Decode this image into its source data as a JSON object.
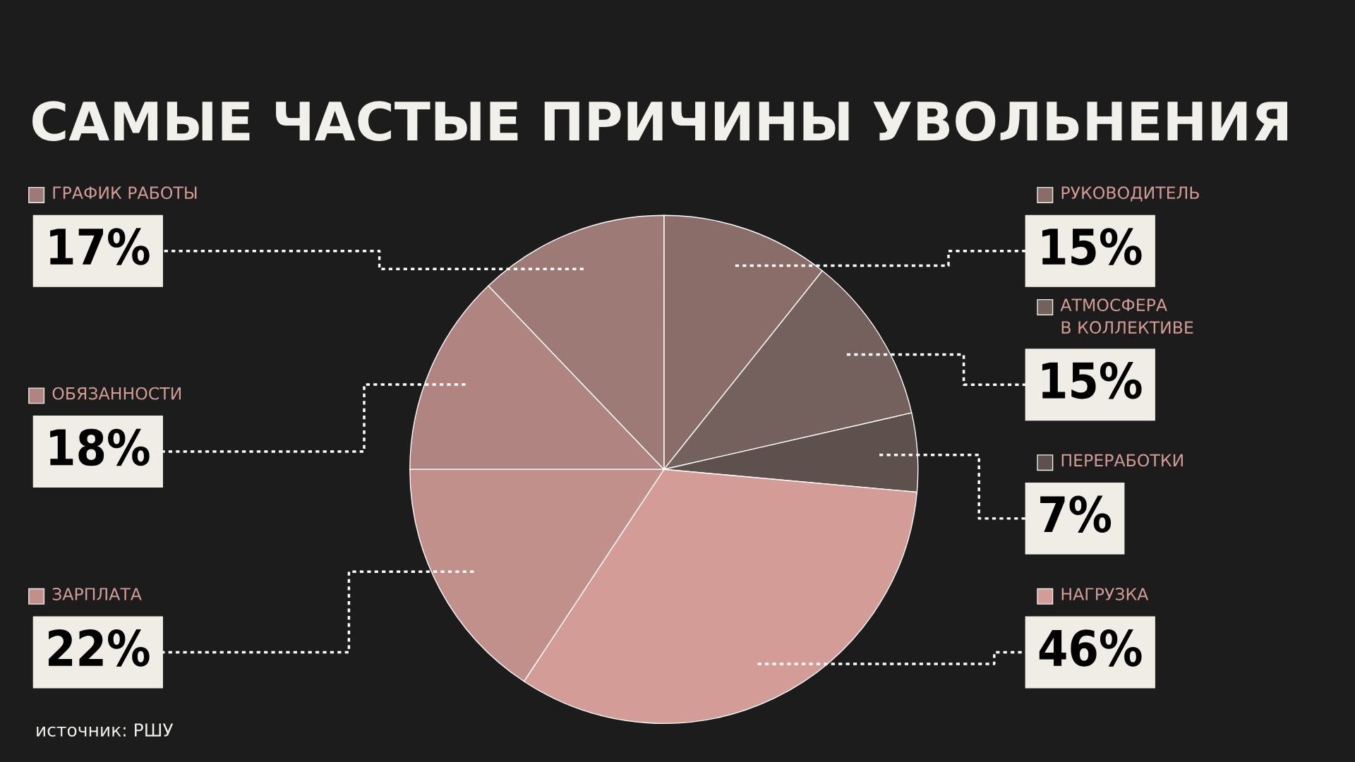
{
  "chart_data": {
    "type": "pie",
    "title": "САМЫЕ ЧАСТЫЕ ПРИЧИНЫ УВОЛЬНЕНИЯ",
    "categories": [
      "РУКОВОДИТЕЛЬ",
      "АТМОСФЕРА\nВ КОЛЛЕКТИВЕ",
      "ПЕРЕРАБОТКИ",
      "НАГРУЗКА",
      "ЗАРПЛАТА",
      "ОБЯЗАННОСТИ",
      "ГРАФИК РАБОТЫ"
    ],
    "values": [
      15,
      15,
      7,
      46,
      22,
      18,
      17
    ],
    "value_labels": [
      "15%",
      "15%",
      "7%",
      "46%",
      "22%",
      "18%",
      "17%"
    ],
    "colors": [
      "#8a6c68",
      "#74605c",
      "#5e504d",
      "#d49c96",
      "#c2908b",
      "#b08480",
      "#9d7a75"
    ],
    "annotations": [
      "источник: РШУ"
    ],
    "legend": "top left"
  }
}
